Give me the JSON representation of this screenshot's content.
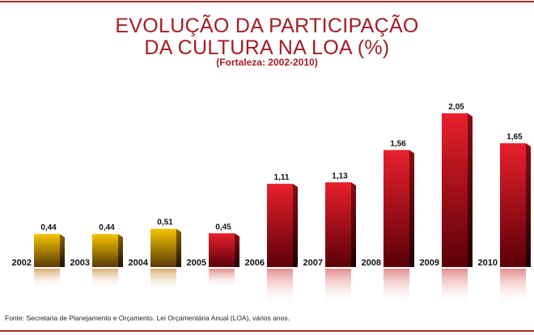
{
  "chart_data": {
    "type": "bar",
    "title": "EVOLUÇÃO DA PARTICIPAÇÃO",
    "title_line2": "DA CULTURA NA LOA (%)",
    "subtitle": "(Fortaleza: 2002-2010)",
    "xlabel": "",
    "ylabel": "",
    "ylim": [
      0,
      2.05
    ],
    "grid": false,
    "categories": [
      "2002",
      "2003",
      "2004",
      "2005",
      "2006",
      "2007",
      "2008",
      "2009",
      "2010"
    ],
    "values": [
      0.44,
      0.44,
      0.51,
      0.45,
      1.11,
      1.13,
      1.56,
      2.05,
      1.65
    ],
    "value_labels": [
      "0,44",
      "0,44",
      "0,51",
      "0,45",
      "1,11",
      "1,13",
      "1,56",
      "2,05",
      "1,65"
    ],
    "bar_colors": [
      "#e0a800",
      "#e0a800",
      "#e0a800",
      "#d4182a",
      "#d4182a",
      "#d4182a",
      "#d4182a",
      "#d4182a",
      "#d4182a"
    ]
  },
  "source": "Fonte: Secretaria de Planejamento e Orçamento. Lei Orçamentária Anual (LOA), vários anos.",
  "colors": {
    "title": "#a51c24",
    "rule": "#a52a2a"
  }
}
